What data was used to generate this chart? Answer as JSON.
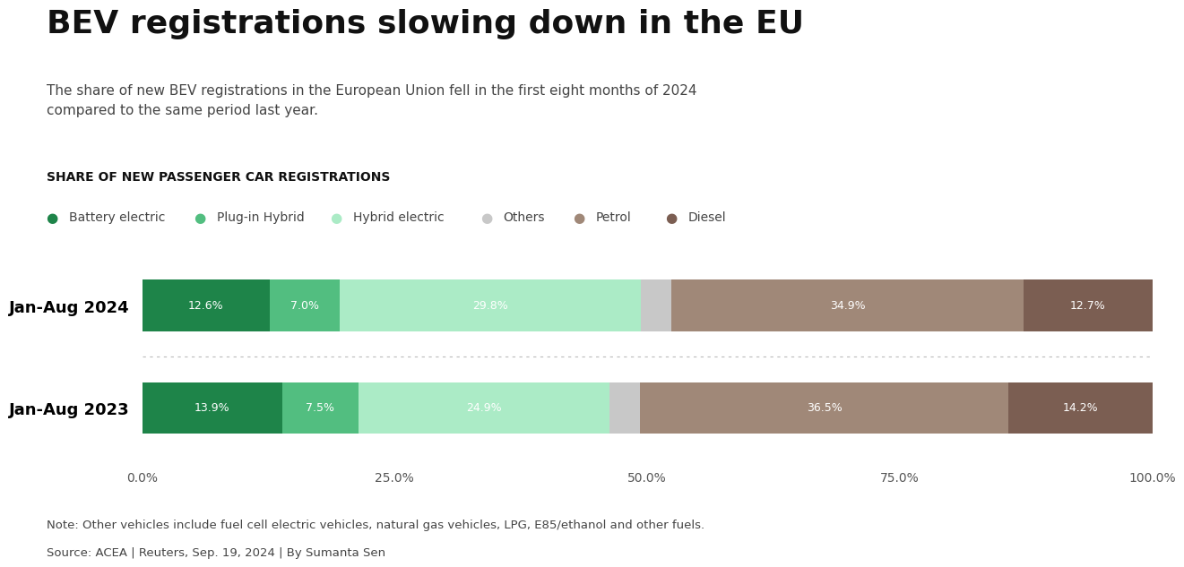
{
  "title": "BEV registrations slowing down in the EU",
  "subtitle": "The share of new BEV registrations in the European Union fell in the first eight months of 2024\ncompared to the same period last year.",
  "chart_label": "SHARE OF NEW PASSENGER CAR REGISTRATIONS",
  "categories": [
    "Jan-Aug 2024",
    "Jan-Aug 2023"
  ],
  "fuel_types": [
    "Battery electric",
    "Plug-in Hybrid",
    "Hybrid electric",
    "Others",
    "Petrol",
    "Diesel"
  ],
  "colors": [
    "#1e8449",
    "#52be80",
    "#abebc6",
    "#c8c8c8",
    "#a08878",
    "#7b5e52"
  ],
  "values_2024": [
    12.6,
    7.0,
    29.8,
    3.0,
    34.9,
    12.7
  ],
  "values_2023": [
    13.9,
    7.5,
    24.9,
    3.0,
    36.5,
    14.2
  ],
  "bar_labels_2024": [
    "12.6%",
    "7.0%",
    "29.8%",
    "",
    "34.9%",
    "12.7%"
  ],
  "bar_labels_2023": [
    "13.9%",
    "7.5%",
    "24.9%",
    "",
    "36.5%",
    "14.2%"
  ],
  "note": "Note: Other vehicles include fuel cell electric vehicles, natural gas vehicles, LPG, E85/ethanol and other fuels.",
  "source": "Source: ACEA | Reuters, Sep. 19, 2024 | By Sumanta Sen",
  "background_color": "#ffffff",
  "xlim": [
    0,
    100
  ],
  "xticks": [
    0,
    25,
    50,
    75,
    100
  ],
  "xticklabels": [
    "0.0%",
    "25.0%",
    "50.0%",
    "75.0%",
    "100.0%"
  ],
  "title_fontsize": 26,
  "subtitle_fontsize": 11,
  "chart_label_fontsize": 10,
  "legend_fontsize": 10,
  "bar_label_fontsize": 9,
  "ytick_fontsize": 13,
  "xtick_fontsize": 10,
  "note_fontsize": 9.5
}
